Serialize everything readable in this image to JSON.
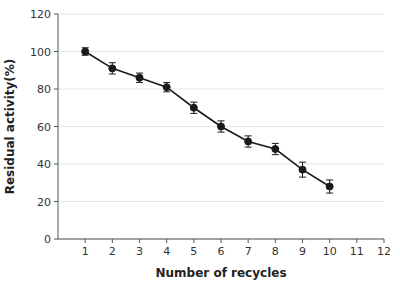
{
  "chart_data": {
    "type": "line",
    "x_label": "Number of recycles",
    "y_label": "Residual activity(%)",
    "x": [
      1,
      2,
      3,
      4,
      5,
      6,
      7,
      8,
      9,
      10
    ],
    "values": [
      100,
      91,
      86,
      81,
      70,
      60,
      52,
      48,
      37,
      28
    ],
    "errors": [
      2.0,
      3.0,
      2.5,
      2.5,
      3.0,
      3.0,
      3.0,
      3.0,
      4.0,
      3.5
    ],
    "xlim": [
      0,
      12
    ],
    "ylim": [
      0,
      120
    ],
    "xticks": [
      1,
      2,
      3,
      4,
      5,
      6,
      7,
      8,
      9,
      10,
      11,
      12
    ],
    "yticks": [
      0,
      20,
      40,
      60,
      80,
      100,
      120
    ],
    "color": "#1a1a1a",
    "marker": "circle",
    "line_style": "solid"
  }
}
